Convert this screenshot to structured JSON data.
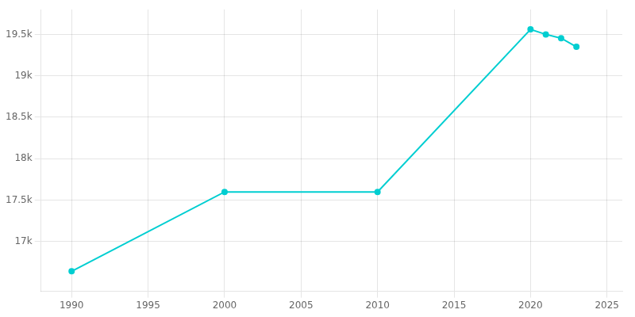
{
  "chart_data": {
    "type": "line",
    "x": [
      1990,
      2000,
      2010,
      2020,
      2021,
      2022,
      2023
    ],
    "values": [
      16642,
      17599,
      17599,
      19560,
      19500,
      19454,
      19350
    ],
    "color": "#00CED1",
    "marker": "circle",
    "xlim": [
      1988,
      2026
    ],
    "ylim": [
      16400,
      19800
    ],
    "xticks": [
      1990,
      1995,
      2000,
      2005,
      2010,
      2015,
      2020,
      2025
    ],
    "yticks": [
      {
        "value": 17000,
        "label": "17k"
      },
      {
        "value": 17500,
        "label": "17.5k"
      },
      {
        "value": 18000,
        "label": "18k"
      },
      {
        "value": 18500,
        "label": "18.5k"
      },
      {
        "value": 19000,
        "label": "19k"
      },
      {
        "value": 19500,
        "label": "19.5k"
      }
    ],
    "grid": true
  }
}
